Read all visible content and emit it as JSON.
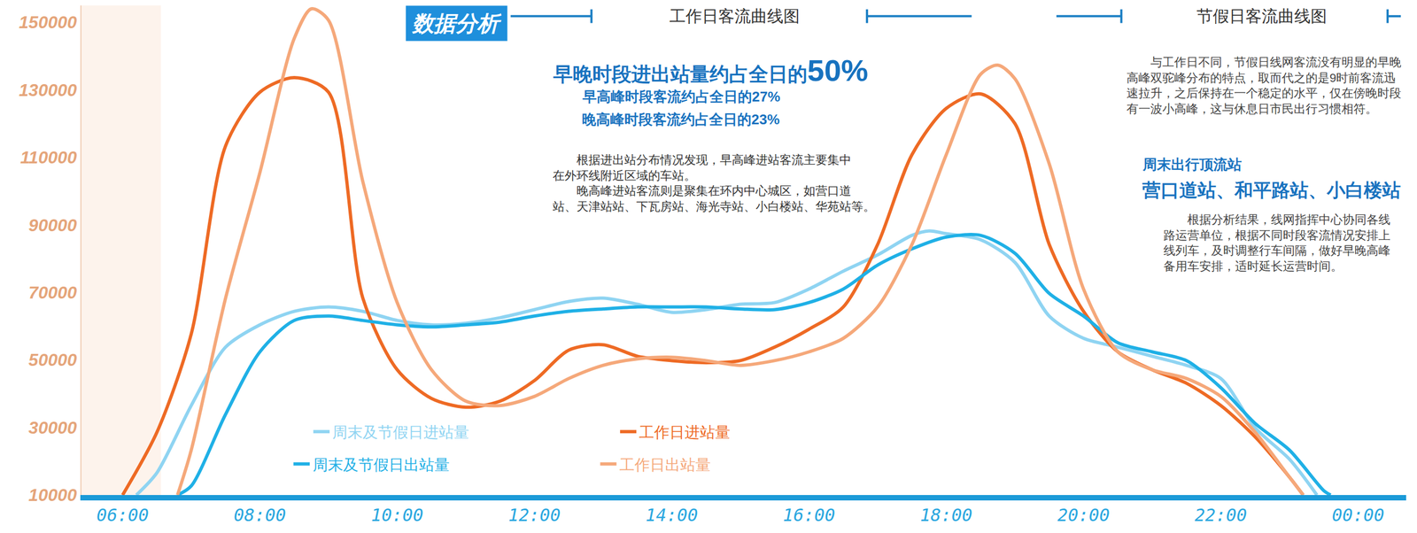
{
  "chart_data": {
    "type": "line",
    "line_style": "smooth",
    "grid": false,
    "legend": "bottom",
    "xlim": [
      5.4,
      24.7
    ],
    "xticks": [
      {
        "value": 6,
        "label": "06:00"
      },
      {
        "value": 8,
        "label": "08:00"
      },
      {
        "value": 10,
        "label": "10:00"
      },
      {
        "value": 12,
        "label": "12:00"
      },
      {
        "value": 14,
        "label": "14:00"
      },
      {
        "value": 16,
        "label": "16:00"
      },
      {
        "value": 18,
        "label": "18:00"
      },
      {
        "value": 20,
        "label": "20:00"
      },
      {
        "value": 22,
        "label": "22:00"
      },
      {
        "value": 24,
        "label": "00:00"
      }
    ],
    "ylim": [
      10000,
      155000
    ],
    "yticks": [
      10000,
      30000,
      50000,
      70000,
      90000,
      110000,
      130000,
      150000
    ],
    "series": [
      {
        "name": "周末及节假日进站量",
        "color": "#8fd4f2",
        "x": [
          6.2,
          6.5,
          7,
          7.5,
          8,
          8.5,
          9,
          9.5,
          10,
          10.5,
          11,
          11.5,
          12,
          12.5,
          13,
          13.5,
          14,
          14.5,
          15,
          15.5,
          16,
          16.5,
          17,
          17.5,
          17.75,
          18,
          18.5,
          19,
          19.5,
          20,
          20.5,
          21,
          21.5,
          22,
          22.5,
          23,
          23.4
        ],
        "values": [
          10000,
          16600,
          36500,
          53800,
          60400,
          64400,
          65700,
          64400,
          61700,
          60400,
          60900,
          62500,
          64900,
          67300,
          68300,
          66500,
          64100,
          64900,
          66500,
          67000,
          71000,
          76300,
          81100,
          86900,
          88200,
          87400,
          85600,
          78900,
          63000,
          56400,
          53800,
          51100,
          48400,
          44500,
          29900,
          20600,
          10000
        ]
      },
      {
        "name": "工作日进站量",
        "color": "#ee6a24",
        "x": [
          6,
          6.5,
          7,
          7.5,
          8,
          8.5,
          9,
          9.5,
          10,
          10.5,
          11,
          11.5,
          12,
          12.5,
          13,
          13.5,
          14,
          14.5,
          15,
          15.5,
          16,
          16.5,
          17,
          17.5,
          18,
          18.5,
          19,
          19.5,
          20,
          20.5,
          21,
          21.5,
          22,
          22.5,
          23,
          23.2
        ],
        "values": [
          10000,
          28600,
          57700,
          113400,
          129300,
          133600,
          129300,
          68300,
          47100,
          38600,
          36000,
          37800,
          43900,
          52900,
          54500,
          51100,
          49800,
          49200,
          49800,
          53800,
          59100,
          65700,
          84200,
          110800,
          124500,
          128800,
          120000,
          84200,
          64400,
          52400,
          47100,
          43100,
          36500,
          27200,
          15300,
          10000
        ]
      },
      {
        "name": "周末及节假日出站量",
        "color": "#1fb0e6",
        "x": [
          6.8,
          7,
          7.5,
          8,
          8.5,
          9,
          9.5,
          10,
          10.5,
          11,
          11.5,
          12,
          12.5,
          13,
          13.5,
          14,
          14.5,
          15,
          15.5,
          16,
          16.5,
          17,
          17.5,
          18,
          18.5,
          19,
          19.5,
          20,
          20.5,
          21,
          21.5,
          22,
          22.5,
          23,
          23.5,
          23.6
        ],
        "values": [
          10000,
          12700,
          33900,
          52400,
          61700,
          63000,
          61700,
          60400,
          59800,
          60400,
          61200,
          63000,
          64400,
          65100,
          65700,
          65700,
          65700,
          65100,
          64900,
          67000,
          71000,
          78100,
          82900,
          86400,
          86900,
          81600,
          69700,
          63000,
          55100,
          52400,
          49800,
          41800,
          31200,
          23300,
          11300,
          10000
        ]
      },
      {
        "name": "工作日出站量",
        "color": "#f5a87a",
        "x": [
          6.8,
          7,
          7.5,
          8,
          8.5,
          8.75,
          9,
          9.5,
          10,
          10.5,
          11,
          11.5,
          12,
          12.5,
          13,
          13.5,
          14,
          14.5,
          15,
          15.5,
          16,
          16.5,
          17,
          17.5,
          18,
          18.5,
          18.75,
          19,
          19.5,
          20,
          20.5,
          21,
          21.5,
          22,
          22.5,
          23,
          23.2
        ],
        "values": [
          10000,
          23300,
          68300,
          105500,
          145200,
          154000,
          150600,
          102800,
          67000,
          47100,
          37800,
          36500,
          39200,
          44500,
          48400,
          50300,
          50800,
          49800,
          48400,
          49800,
          52400,
          56400,
          65700,
          84200,
          110800,
          134600,
          137300,
          133300,
          108100,
          71000,
          52400,
          47100,
          44500,
          39200,
          28600,
          15300,
          10000
        ]
      }
    ],
    "annotations": {
      "badge": "数据分析",
      "panel_titles": [
        "工作日客流曲线图",
        "节假日客流曲线图"
      ],
      "headline": "早晚时段进出站量约占全日的",
      "headline_figure": "50%",
      "headline_sublines": [
        "早高峰时段客流约占全日的27%",
        "晚高峰时段客流约占全日的23%"
      ],
      "workday_paragraph": [
        "　　根据进出站分布情况发现，早高峰进站客流主要集中",
        "在外环线附近区域的车站。",
        "　　晚高峰进站客流则是聚集在环内中心城区，如营口道",
        "站、天津站站、下瓦房站、海光寺站、小白楼站、华苑站等。"
      ],
      "holiday_paragraph": [
        "　　与工作日不同，节假日线网客流没有明显的早晚",
        "高峰双驼峰分布的特点，取而代之的是9时前客流迅",
        "速拉升，之后保持在一个稳定的水平，仅在傍晚时段",
        "有一波小高峰，这与休息日市民出行习惯相符。"
      ],
      "weekend_heading": "周末出行顶流站",
      "weekend_stations": "营口道站、和平路站、小白楼站",
      "closing_paragraph": [
        "　　根据分析结果，线网指挥中心协同各线",
        "路运营单位，根据不同时段客流情况安排上",
        "线列车，及时调整行车间隔，做好早晚高峰",
        "备用车安排，适时延长运营时间。"
      ]
    }
  }
}
